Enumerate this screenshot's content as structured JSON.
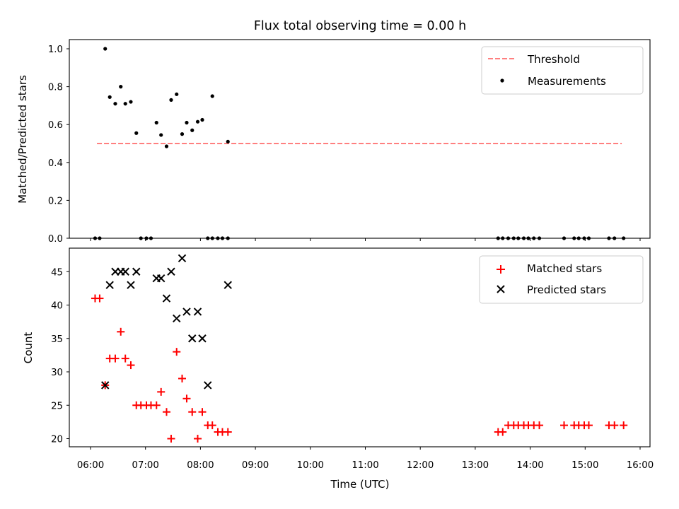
{
  "chart_data": [
    {
      "type": "scatter",
      "title": "Flux total observing time = 0.00 h",
      "xlabel": "",
      "ylabel": "Matched/Predicted stars",
      "ylim": [
        0,
        1.05
      ],
      "yticks": [
        "0.0",
        "0.2",
        "0.4",
        "0.6",
        "0.8",
        "1.0"
      ],
      "legend_position": "top-right",
      "threshold": {
        "name": "Threshold",
        "value": 0.5,
        "x_range": [
          "06:07",
          "15:40"
        ],
        "color": "#ff7f7f",
        "style": "dashed"
      },
      "series": [
        {
          "name": "Measurements",
          "color": "#000000",
          "marker": "dot",
          "x": [
            "06:05",
            "06:10",
            "06:16",
            "06:21",
            "06:27",
            "06:33",
            "06:38",
            "06:44",
            "06:50",
            "06:55",
            "07:01",
            "07:06",
            "07:12",
            "07:17",
            "07:23",
            "07:28",
            "07:34",
            "07:40",
            "07:45",
            "07:51",
            "07:57",
            "08:02",
            "08:08",
            "08:13",
            "08:19",
            "08:24",
            "08:30",
            "13:25",
            "13:30",
            "13:36",
            "13:42",
            "13:47",
            "13:53",
            "13:58",
            "14:04",
            "14:10",
            "14:37",
            "14:48",
            "14:53",
            "14:59",
            "15:04",
            "15:26",
            "15:32",
            "15:42"
          ],
          "y": [
            0.0,
            0.0,
            1.0,
            0.745,
            0.71,
            0.8,
            0.71,
            0.72,
            0.555,
            0.0,
            0.0,
            0.0,
            0.61,
            0.545,
            0.485,
            0.73,
            0.76,
            0.55,
            0.61,
            0.57,
            0.615,
            0.625,
            0.0,
            0.75,
            0.0,
            0.0,
            0.0,
            0.0,
            0.0,
            0.0,
            0.0,
            0.0,
            0.0,
            0.0,
            0.0,
            0.0,
            0.0,
            0.0,
            0.0,
            0.0,
            0.0,
            0.0,
            0.0,
            0.0
          ]
        }
      ],
      "extra_points": {
        "x": [
          "08:13",
          "08:30"
        ],
        "y": [
          0.0,
          0.51
        ]
      }
    },
    {
      "type": "scatter",
      "title": "",
      "xlabel": "Time (UTC)",
      "ylabel": "Count",
      "ylim": [
        18.6,
        48.4
      ],
      "yticks": [
        "20",
        "25",
        "30",
        "35",
        "40",
        "45"
      ],
      "xticks": [
        "06:00",
        "07:00",
        "08:00",
        "09:00",
        "10:00",
        "11:00",
        "12:00",
        "13:00",
        "14:00",
        "15:00",
        "16:00"
      ],
      "legend_position": "top-right",
      "series": [
        {
          "name": "Matched stars",
          "color": "#ff0000",
          "marker": "plus",
          "x": [
            "06:05",
            "06:10",
            "06:16",
            "06:21",
            "06:27",
            "06:33",
            "06:38",
            "06:44",
            "06:50",
            "06:55",
            "07:01",
            "07:06",
            "07:12",
            "07:17",
            "07:23",
            "07:28",
            "07:34",
            "07:40",
            "07:45",
            "07:51",
            "07:57",
            "08:02",
            "08:08",
            "08:13",
            "08:19",
            "08:24",
            "08:30",
            "13:25",
            "13:30",
            "13:36",
            "13:42",
            "13:47",
            "13:53",
            "13:58",
            "14:04",
            "14:10",
            "14:37",
            "14:48",
            "14:53",
            "14:59",
            "15:04",
            "15:26",
            "15:32",
            "15:42"
          ],
          "y": [
            41,
            41,
            28,
            32,
            32,
            36,
            32,
            31,
            25,
            25,
            25,
            25,
            25,
            27,
            24,
            20,
            33,
            29,
            26,
            24,
            20,
            24,
            22,
            22,
            21,
            21,
            21,
            21,
            21,
            22,
            22,
            22,
            22,
            22,
            22,
            22,
            22,
            22,
            22,
            22,
            22,
            22,
            22,
            22
          ]
        },
        {
          "name": "Predicted stars",
          "color": "#000000",
          "marker": "x",
          "x": [
            "06:16",
            "06:21",
            "06:27",
            "06:33",
            "06:38",
            "06:44",
            "06:50",
            "07:12",
            "07:17",
            "07:23",
            "07:28",
            "07:34",
            "07:40",
            "07:45",
            "07:51",
            "07:57",
            "08:02",
            "08:08",
            "08:30"
          ],
          "y": [
            28,
            43,
            45,
            45,
            45,
            43,
            45,
            44,
            44,
            41,
            45,
            38,
            47,
            39,
            35,
            39,
            35,
            28,
            43
          ]
        }
      ]
    }
  ]
}
